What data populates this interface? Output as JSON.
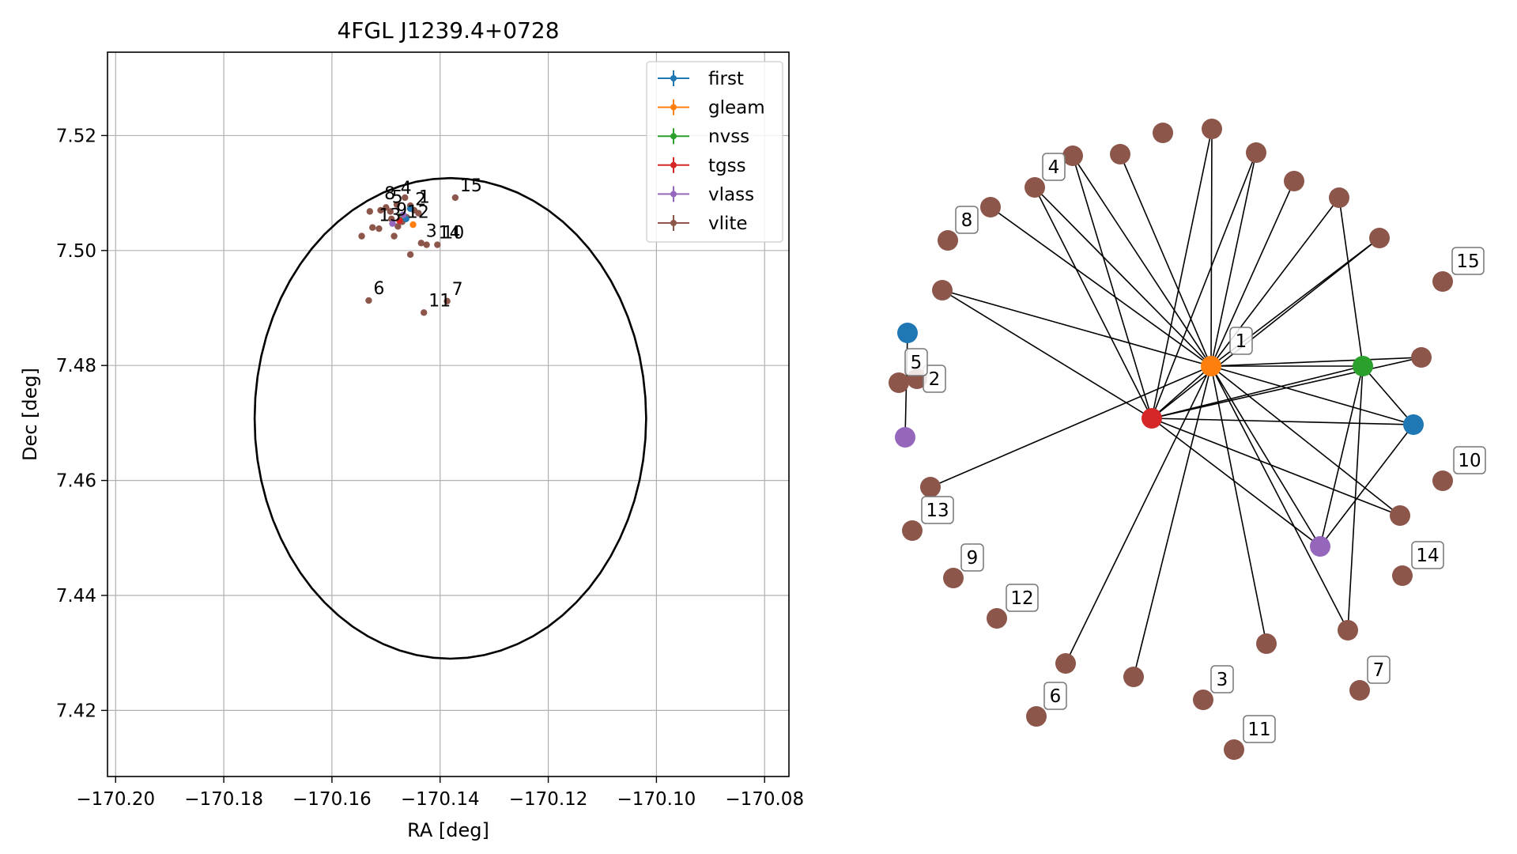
{
  "chart_data": [
    {
      "type": "scatter",
      "title": "4FGL J1239.4+0728",
      "xlabel": "RA [deg]",
      "ylabel": "Dec [deg]",
      "xlim": [
        -170.2015,
        -170.0755
      ],
      "ylim": [
        7.4085,
        7.5345
      ],
      "xticks": [
        -170.2,
        -170.18,
        -170.16,
        -170.14,
        -170.12,
        -170.1,
        -170.08
      ],
      "xtick_labels": [
        "−170.20",
        "−170.18",
        "−170.16",
        "−170.14",
        "−170.12",
        "−170.10",
        "−170.08"
      ],
      "yticks": [
        7.42,
        7.44,
        7.46,
        7.48,
        7.5,
        7.52
      ],
      "ytick_labels": [
        "7.42",
        "7.44",
        "7.46",
        "7.48",
        "7.50",
        "7.52"
      ],
      "grid": true,
      "legend_position": "top-right",
      "legend": [
        {
          "name": "first",
          "color": "#1f77b4"
        },
        {
          "name": "gleam",
          "color": "#ff7f0e"
        },
        {
          "name": "nvss",
          "color": "#2ca02c"
        },
        {
          "name": "tgss",
          "color": "#d62728"
        },
        {
          "name": "vlass",
          "color": "#9467bd"
        },
        {
          "name": "vlite",
          "color": "#8c564b"
        }
      ],
      "ellipse": {
        "center": [
          -170.1381,
          7.4708
        ],
        "semi_axis_ra": 0.0362,
        "semi_axis_dec": 0.0418
      },
      "series": [
        {
          "name": "first",
          "color": "#1f77b4",
          "points": [
            [
              -170.1463,
              7.5055
            ],
            [
              -170.1455,
              7.5073
            ]
          ]
        },
        {
          "name": "gleam",
          "color": "#ff7f0e",
          "points": [
            [
              -170.145,
              7.5045
            ]
          ]
        },
        {
          "name": "nvss",
          "color": "#2ca02c",
          "points": [
            [
              -170.1472,
              7.506
            ]
          ]
        },
        {
          "name": "tgss",
          "color": "#d62728",
          "points": [
            [
              -170.1475,
              7.5052
            ]
          ]
        },
        {
          "name": "vlass",
          "color": "#9467bd",
          "points": [
            [
              -170.1488,
              7.5047
            ],
            [
              -170.1468,
              7.5062
            ]
          ]
        },
        {
          "name": "vlite",
          "color": "#8c564b",
          "points": [
            [
              -170.153,
              7.5068
            ],
            [
              -170.1525,
              7.504
            ],
            [
              -170.1545,
              7.5025
            ],
            [
              -170.151,
              7.507
            ],
            [
              -170.15,
              7.5075
            ],
            [
              -170.148,
              7.508
            ],
            [
              -170.1465,
              7.5092
            ],
            [
              -170.1455,
              7.5078
            ],
            [
              -170.1448,
              7.507
            ],
            [
              -170.149,
              7.5055
            ],
            [
              -170.147,
              7.505
            ],
            [
              -170.144,
              7.5065
            ],
            [
              -170.1485,
              7.5025
            ],
            [
              -170.1455,
              7.4993
            ],
            [
              -170.1435,
              7.5013
            ],
            [
              -170.1425,
              7.501
            ],
            [
              -170.1405,
              7.501
            ],
            [
              -170.1372,
              7.5092
            ],
            [
              -170.1532,
              7.4913
            ],
            [
              -170.143,
              7.4892
            ],
            [
              -170.1387,
              7.4912
            ],
            [
              -170.1513,
              7.5038
            ],
            [
              -170.1478,
              7.5042
            ],
            [
              -170.1492,
              7.5068
            ],
            [
              -170.1462,
              7.5058
            ]
          ]
        }
      ],
      "annotations": [
        {
          "text": "15",
          "x": -170.1372,
          "y": 7.5092
        },
        {
          "text": "8",
          "x": -170.1512,
          "y": 7.5078
        },
        {
          "text": "4",
          "x": -170.1482,
          "y": 7.5088
        },
        {
          "text": "2",
          "x": -170.1455,
          "y": 7.5068
        },
        {
          "text": "1",
          "x": -170.1448,
          "y": 7.5072
        },
        {
          "text": "5",
          "x": -170.1498,
          "y": 7.5072
        },
        {
          "text": "13",
          "x": -170.1522,
          "y": 7.504
        },
        {
          "text": "3",
          "x": -170.1435,
          "y": 7.5013
        },
        {
          "text": "14",
          "x": -170.1412,
          "y": 7.501
        },
        {
          "text": "10",
          "x": -170.1405,
          "y": 7.501
        },
        {
          "text": "6",
          "x": -170.1532,
          "y": 7.4913
        },
        {
          "text": "11",
          "x": -170.143,
          "y": 7.4892
        },
        {
          "text": "7",
          "x": -170.1387,
          "y": 7.4912
        },
        {
          "text": "9",
          "x": -170.149,
          "y": 7.505
        },
        {
          "text": "12",
          "x": -170.147,
          "y": 7.5046
        }
      ]
    },
    {
      "type": "network",
      "nodes": [
        {
          "id": "first_a",
          "color": "#1f77b4"
        },
        {
          "id": "first_b",
          "color": "#1f77b4"
        },
        {
          "id": "gleam",
          "color": "#ff7f0e",
          "label": "1"
        },
        {
          "id": "nvss",
          "color": "#2ca02c"
        },
        {
          "id": "tgss",
          "color": "#d62728"
        },
        {
          "id": "vlass_a",
          "color": "#9467bd"
        },
        {
          "id": "vlass_b",
          "color": "#9467bd"
        },
        {
          "id": "v2",
          "color": "#8c564b",
          "label": "2"
        },
        {
          "id": "v3",
          "color": "#8c564b",
          "label": "3"
        },
        {
          "id": "v4",
          "color": "#8c564b",
          "label": "4"
        },
        {
          "id": "v5",
          "color": "#8c564b",
          "label": "5"
        },
        {
          "id": "v6",
          "color": "#8c564b",
          "label": "6"
        },
        {
          "id": "v7",
          "color": "#8c564b",
          "label": "7"
        },
        {
          "id": "v8",
          "color": "#8c564b",
          "label": "8"
        },
        {
          "id": "v9",
          "color": "#8c564b",
          "label": "9"
        },
        {
          "id": "v10",
          "color": "#8c564b",
          "label": "10"
        },
        {
          "id": "v11",
          "color": "#8c564b",
          "label": "11"
        },
        {
          "id": "v12",
          "color": "#8c564b",
          "label": "12"
        },
        {
          "id": "v13",
          "color": "#8c564b",
          "label": "13"
        },
        {
          "id": "v14",
          "color": "#8c564b",
          "label": "14"
        },
        {
          "id": "v15",
          "color": "#8c564b",
          "label": "15"
        },
        {
          "id": "u1",
          "color": "#8c564b"
        },
        {
          "id": "u2",
          "color": "#8c564b"
        },
        {
          "id": "u3",
          "color": "#8c564b"
        },
        {
          "id": "u4",
          "color": "#8c564b"
        },
        {
          "id": "u5",
          "color": "#8c564b"
        },
        {
          "id": "u6",
          "color": "#8c564b"
        },
        {
          "id": "u7",
          "color": "#8c564b"
        },
        {
          "id": "u8",
          "color": "#8c564b"
        },
        {
          "id": "u9",
          "color": "#8c564b"
        },
        {
          "id": "u10",
          "color": "#8c564b"
        },
        {
          "id": "u11",
          "color": "#8c564b"
        },
        {
          "id": "u12",
          "color": "#8c564b"
        },
        {
          "id": "u13",
          "color": "#8c564b"
        },
        {
          "id": "u14",
          "color": "#8c564b"
        },
        {
          "id": "u15",
          "color": "#8c564b"
        },
        {
          "id": "u16",
          "color": "#8c564b"
        },
        {
          "id": "u17",
          "color": "#8c564b"
        }
      ],
      "edges": [
        [
          "gleam",
          "v4"
        ],
        [
          "gleam",
          "u1"
        ],
        [
          "gleam",
          "u2"
        ],
        [
          "gleam",
          "u3"
        ],
        [
          "gleam",
          "u4"
        ],
        [
          "gleam",
          "u6"
        ],
        [
          "gleam",
          "u7"
        ],
        [
          "gleam",
          "u8"
        ],
        [
          "gleam",
          "u9"
        ],
        [
          "gleam",
          "u10"
        ],
        [
          "gleam",
          "u11"
        ],
        [
          "gleam",
          "u12"
        ],
        [
          "gleam",
          "u13"
        ],
        [
          "gleam",
          "u14"
        ],
        [
          "gleam",
          "u15"
        ],
        [
          "gleam",
          "u16"
        ],
        [
          "gleam",
          "nvss"
        ],
        [
          "gleam",
          "tgss"
        ],
        [
          "gleam",
          "first_b"
        ],
        [
          "gleam",
          "vlass_b"
        ],
        [
          "gleam",
          "u17"
        ],
        [
          "tgss",
          "u1"
        ],
        [
          "tgss",
          "v4"
        ],
        [
          "tgss",
          "u3"
        ],
        [
          "tgss",
          "u6"
        ],
        [
          "tgss",
          "u7"
        ],
        [
          "tgss",
          "u10"
        ],
        [
          "tgss",
          "u11"
        ],
        [
          "tgss",
          "u12"
        ],
        [
          "tgss",
          "first_b"
        ],
        [
          "tgss",
          "vlass_b"
        ],
        [
          "tgss",
          "nvss"
        ],
        [
          "nvss",
          "u13"
        ],
        [
          "nvss",
          "first_b"
        ],
        [
          "nvss",
          "u9"
        ],
        [
          "nvss",
          "vlass_b"
        ],
        [
          "first_b",
          "vlass_b"
        ],
        [
          "first_a",
          "vlass_a"
        ]
      ]
    }
  ]
}
